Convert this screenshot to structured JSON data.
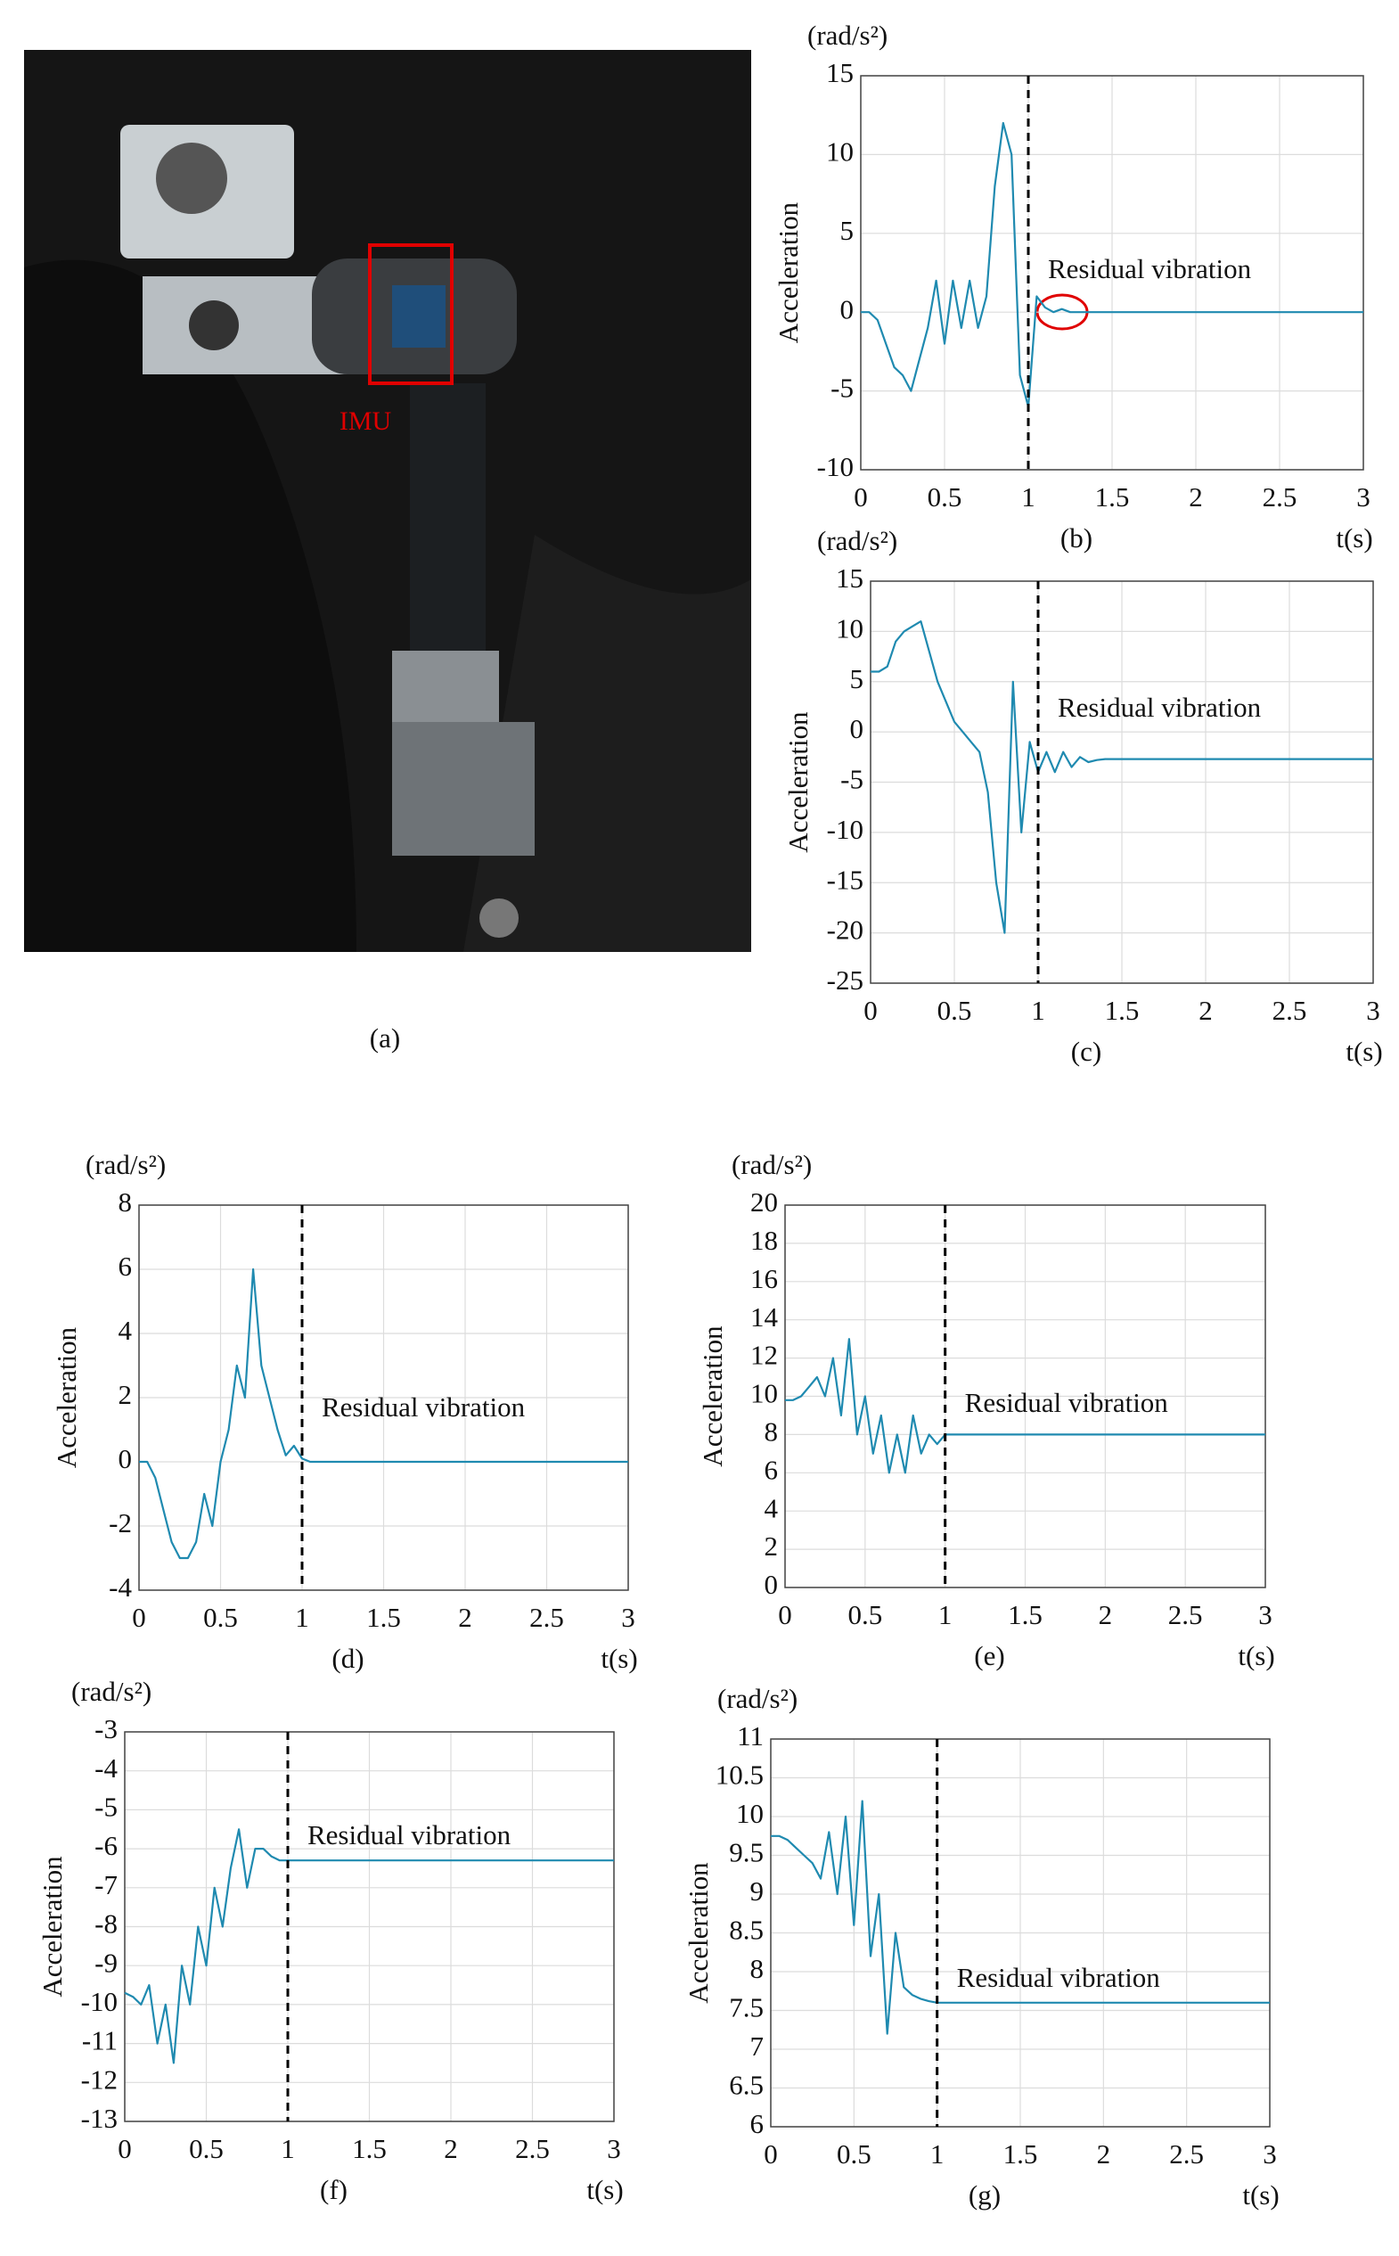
{
  "figure": {
    "photo_label": "IMU",
    "photo_caption": "(a)"
  },
  "chart_data": [
    {
      "type": "line",
      "unit_label": "(rad/s²)",
      "y_label": "Acceleration",
      "x_label": "t(s)",
      "caption": "(b)",
      "annotation": "Residual vibration",
      "xlim": [
        0,
        3
      ],
      "xticks": [
        0,
        0.5,
        1,
        1.5,
        2,
        2.5,
        3
      ],
      "ylim": [
        -10,
        15
      ],
      "yticks": [
        -10,
        -5,
        0,
        5,
        10,
        15
      ],
      "grid": true,
      "marker_x": 1,
      "x": [
        0,
        0.05,
        0.1,
        0.15,
        0.2,
        0.25,
        0.3,
        0.35,
        0.4,
        0.45,
        0.5,
        0.55,
        0.6,
        0.65,
        0.7,
        0.75,
        0.8,
        0.85,
        0.9,
        0.95,
        1,
        1.05,
        1.1,
        1.15,
        1.2,
        1.25,
        1.3,
        1.35,
        1.4,
        1.5,
        2,
        2.5,
        3
      ],
      "series": [
        {
          "color": "#1f8ab0",
          "values": [
            0,
            0,
            -0.5,
            -2,
            -3.5,
            -4,
            -5,
            -3,
            -1,
            2,
            -2,
            2,
            -1,
            2,
            -1,
            1,
            8,
            12,
            10,
            -4,
            -6,
            1,
            0.3,
            0,
            0.2,
            0,
            0,
            0,
            0,
            0,
            0,
            0,
            0
          ]
        }
      ]
    },
    {
      "type": "line",
      "unit_label": "(rad/s²)",
      "y_label": "Acceleration",
      "x_label": "t(s)",
      "caption": "(c)",
      "annotation": "Residual vibration",
      "xlim": [
        0,
        3
      ],
      "xticks": [
        0,
        0.5,
        1,
        1.5,
        2,
        2.5,
        3
      ],
      "ylim": [
        -25,
        15
      ],
      "yticks": [
        -25,
        -20,
        -15,
        -10,
        -5,
        0,
        5,
        10,
        15
      ],
      "grid": true,
      "marker_x": 1,
      "x": [
        0,
        0.05,
        0.1,
        0.15,
        0.2,
        0.25,
        0.3,
        0.35,
        0.4,
        0.45,
        0.5,
        0.55,
        0.6,
        0.65,
        0.7,
        0.75,
        0.8,
        0.85,
        0.9,
        0.95,
        1,
        1.05,
        1.1,
        1.15,
        1.2,
        1.25,
        1.3,
        1.35,
        1.4,
        1.5,
        2,
        2.5,
        3
      ],
      "series": [
        {
          "color": "#1f8ab0",
          "values": [
            6,
            6,
            6.5,
            9,
            10,
            10.5,
            11,
            8,
            5,
            3,
            1,
            0,
            -1,
            -2,
            -6,
            -15,
            -20,
            5,
            -10,
            -1,
            -4,
            -2,
            -4,
            -2,
            -3.5,
            -2.5,
            -3,
            -2.8,
            -2.7,
            -2.7,
            -2.7,
            -2.7,
            -2.7
          ]
        }
      ]
    },
    {
      "type": "line",
      "unit_label": "(rad/s²)",
      "y_label": "Acceleration",
      "x_label": "t(s)",
      "caption": "(d)",
      "annotation": "Residual vibration",
      "xlim": [
        0,
        3
      ],
      "xticks": [
        0,
        0.5,
        1,
        1.5,
        2,
        2.5,
        3
      ],
      "ylim": [
        -4,
        8
      ],
      "yticks": [
        -4,
        -2,
        0,
        2,
        4,
        6,
        8
      ],
      "grid": true,
      "marker_x": 1,
      "x": [
        0,
        0.05,
        0.1,
        0.15,
        0.2,
        0.25,
        0.3,
        0.35,
        0.4,
        0.45,
        0.5,
        0.55,
        0.6,
        0.65,
        0.7,
        0.75,
        0.8,
        0.85,
        0.9,
        0.95,
        1,
        1.05,
        1.1,
        1.15,
        1.2,
        1.25,
        1.3,
        1.35,
        1.4,
        1.5,
        2,
        2.5,
        3
      ],
      "series": [
        {
          "color": "#1f8ab0",
          "values": [
            0,
            0,
            -0.5,
            -1.5,
            -2.5,
            -3,
            -3,
            -2.5,
            -1,
            -2,
            0,
            1,
            3,
            2,
            6,
            3,
            2,
            1,
            0.2,
            0.5,
            0.1,
            0,
            0,
            0,
            0,
            0,
            0,
            0,
            0,
            0,
            0,
            0,
            0
          ]
        }
      ]
    },
    {
      "type": "line",
      "unit_label": "(rad/s²)",
      "y_label": "Acceleration",
      "x_label": "t(s)",
      "caption": "(e)",
      "annotation": "Residual vibration",
      "xlim": [
        0,
        3
      ],
      "xticks": [
        0,
        0.5,
        1,
        1.5,
        2,
        2.5,
        3
      ],
      "ylim": [
        0,
        20
      ],
      "yticks": [
        0,
        2,
        4,
        6,
        8,
        10,
        12,
        14,
        16,
        18,
        20
      ],
      "grid": true,
      "marker_x": 1,
      "x": [
        0,
        0.05,
        0.1,
        0.15,
        0.2,
        0.25,
        0.3,
        0.35,
        0.4,
        0.45,
        0.5,
        0.55,
        0.6,
        0.65,
        0.7,
        0.75,
        0.8,
        0.85,
        0.9,
        0.95,
        1,
        1.05,
        1.1,
        1.15,
        1.2,
        1.25,
        1.3,
        1.35,
        1.4,
        1.5,
        2,
        2.5,
        3
      ],
      "series": [
        {
          "color": "#1f8ab0",
          "values": [
            9.8,
            9.8,
            10,
            10.5,
            11,
            10,
            12,
            9,
            13,
            8,
            10,
            7,
            9,
            6,
            8,
            6,
            9,
            7,
            8,
            7.5,
            8,
            8,
            8,
            8,
            8,
            8,
            8,
            8,
            8,
            8,
            8,
            8,
            8
          ]
        }
      ]
    },
    {
      "type": "line",
      "unit_label": "(rad/s²)",
      "y_label": "Acceleration",
      "x_label": "t(s)",
      "caption": "(f)",
      "annotation": "Residual vibration",
      "xlim": [
        0,
        3
      ],
      "xticks": [
        0,
        0.5,
        1,
        1.5,
        2,
        2.5,
        3
      ],
      "ylim": [
        -13,
        -3
      ],
      "yticks": [
        -13,
        -12,
        -11,
        -10,
        -9,
        -8,
        -7,
        -6,
        -5,
        -4,
        -3
      ],
      "grid": true,
      "marker_x": 1,
      "x": [
        0,
        0.05,
        0.1,
        0.15,
        0.2,
        0.25,
        0.3,
        0.35,
        0.4,
        0.45,
        0.5,
        0.55,
        0.6,
        0.65,
        0.7,
        0.75,
        0.8,
        0.85,
        0.9,
        0.95,
        1,
        1.05,
        1.1,
        1.15,
        1.2,
        1.25,
        1.3,
        1.35,
        1.4,
        1.5,
        2,
        2.5,
        3
      ],
      "series": [
        {
          "color": "#1f8ab0",
          "values": [
            -9.7,
            -9.8,
            -10,
            -9.5,
            -11,
            -10,
            -11.5,
            -9,
            -10,
            -8,
            -9,
            -7,
            -8,
            -6.5,
            -5.5,
            -7,
            -6,
            -6,
            -6.2,
            -6.3,
            -6.3,
            -6.3,
            -6.3,
            -6.3,
            -6.3,
            -6.3,
            -6.3,
            -6.3,
            -6.3,
            -6.3,
            -6.3,
            -6.3,
            -6.3
          ]
        }
      ]
    },
    {
      "type": "line",
      "unit_label": "(rad/s²)",
      "y_label": "Acceleration",
      "x_label": "t(s)",
      "caption": "(g)",
      "annotation": "Residual vibration",
      "xlim": [
        0,
        3
      ],
      "xticks": [
        0,
        0.5,
        1,
        1.5,
        2,
        2.5,
        3
      ],
      "ylim": [
        6,
        11
      ],
      "yticks": [
        6,
        6.5,
        7,
        7.5,
        8,
        8.5,
        9,
        9.5,
        10,
        10.5,
        11
      ],
      "grid": true,
      "marker_x": 1,
      "x": [
        0,
        0.05,
        0.1,
        0.15,
        0.2,
        0.25,
        0.3,
        0.35,
        0.4,
        0.45,
        0.5,
        0.55,
        0.6,
        0.65,
        0.7,
        0.75,
        0.8,
        0.85,
        0.9,
        0.95,
        1,
        1.05,
        1.1,
        1.15,
        1.2,
        1.25,
        1.3,
        1.35,
        1.4,
        1.5,
        2,
        2.5,
        3
      ],
      "series": [
        {
          "color": "#1f8ab0",
          "values": [
            9.75,
            9.75,
            9.7,
            9.6,
            9.5,
            9.4,
            9.2,
            9.8,
            9,
            10,
            8.6,
            10.2,
            8.2,
            9,
            7.2,
            8.5,
            7.8,
            7.7,
            7.65,
            7.62,
            7.6,
            7.6,
            7.6,
            7.6,
            7.6,
            7.6,
            7.6,
            7.6,
            7.6,
            7.6,
            7.6,
            7.6,
            7.6
          ]
        }
      ]
    }
  ]
}
